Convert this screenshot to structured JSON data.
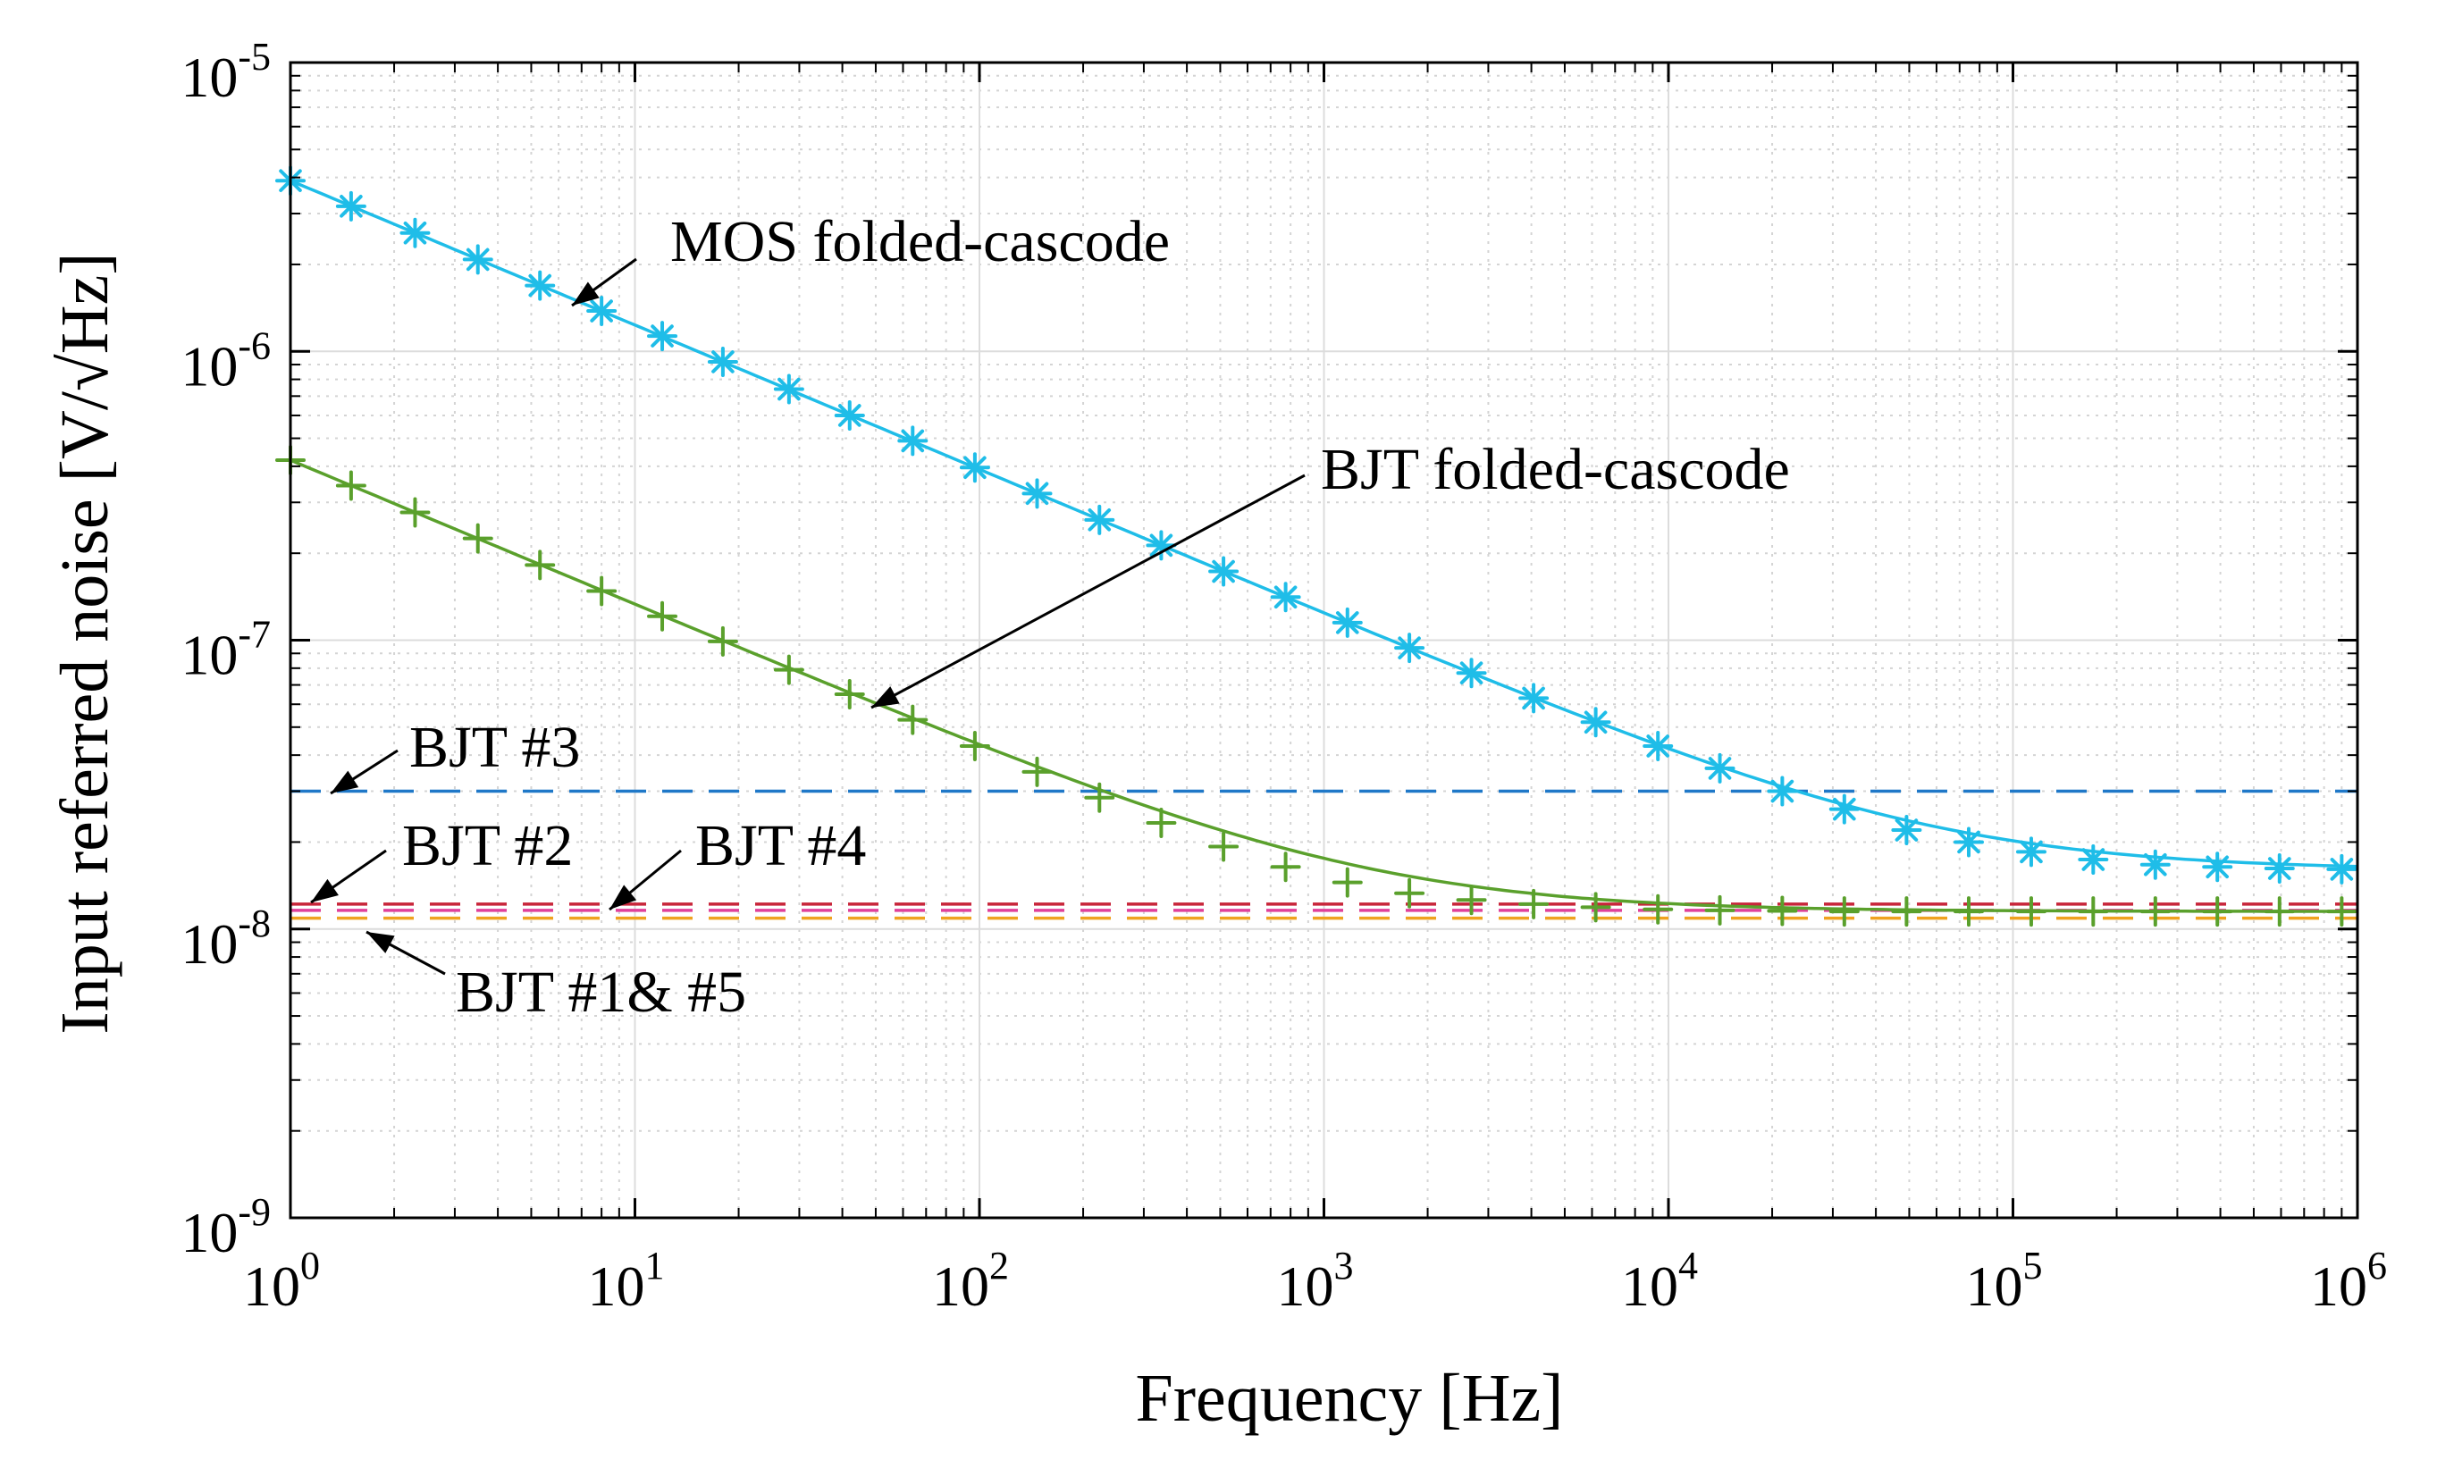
{
  "chart_data": {
    "type": "line",
    "xscale": "log",
    "yscale": "log",
    "xlim": [
      1,
      1000000
    ],
    "ylim": [
      1e-09,
      1e-05
    ],
    "grid": true,
    "minor_grid": true,
    "xlabel": "Frequency [Hz]",
    "ylabel": "Input referred noise [V/√Hz]",
    "x_ticks": [
      {
        "base": "10",
        "exp": "0",
        "value": 1
      },
      {
        "base": "10",
        "exp": "1",
        "value": 10
      },
      {
        "base": "10",
        "exp": "2",
        "value": 100
      },
      {
        "base": "10",
        "exp": "3",
        "value": 1000
      },
      {
        "base": "10",
        "exp": "4",
        "value": 10000
      },
      {
        "base": "10",
        "exp": "5",
        "value": 100000
      },
      {
        "base": "10",
        "exp": "6",
        "value": 1000000
      }
    ],
    "y_ticks": [
      {
        "base": "10",
        "exp": "-5",
        "value": 1e-05
      },
      {
        "base": "10",
        "exp": "-6",
        "value": 1e-06
      },
      {
        "base": "10",
        "exp": "-7",
        "value": 1e-07
      },
      {
        "base": "10",
        "exp": "-8",
        "value": 1e-08
      },
      {
        "base": "10",
        "exp": "-9",
        "value": 1e-09
      }
    ],
    "series": [
      {
        "name": "MOS folded-cascode",
        "color": "#1fbde8",
        "marker": "asterisk",
        "curve": {
          "white": 1.6e-08,
          "flicker_at_1hz": 3.9e-06,
          "flicker_exponent": 0.5
        },
        "x": [
          1,
          1.5,
          2.3,
          3.5,
          5.3,
          8,
          12,
          18,
          28,
          42,
          64,
          97,
          147,
          223,
          337,
          511,
          774,
          1170,
          1770,
          2680,
          4060,
          6150,
          9320,
          14100,
          21400,
          32400,
          49100,
          74400,
          113000,
          171000,
          259000,
          392000,
          594000,
          900000
        ],
        "values": [
          3.9e-06,
          3.18e-06,
          2.57e-06,
          2.08e-06,
          1.69e-06,
          1.38e-06,
          1.13e-06,
          9.2e-07,
          7.4e-07,
          6e-07,
          4.9e-07,
          3.96e-07,
          3.22e-07,
          2.61e-07,
          2.13e-07,
          1.73e-07,
          1.41e-07,
          1.15e-07,
          9.4e-08,
          7.7e-08,
          6.3e-08,
          5.2e-08,
          4.3e-08,
          3.6e-08,
          3e-08,
          2.6e-08,
          2.2e-08,
          2e-08,
          1.85e-08,
          1.74e-08,
          1.67e-08,
          1.64e-08,
          1.62e-08,
          1.61e-08
        ]
      },
      {
        "name": "BJT folded-cascode",
        "color": "#5aa02c",
        "marker": "plus",
        "curve": {
          "white": 1.15e-08,
          "flicker_at_1hz": 4.2e-07,
          "flicker_exponent": 0.5
        },
        "x": [
          1,
          1.5,
          2.3,
          3.5,
          5.3,
          8,
          12,
          18,
          28,
          42,
          64,
          97,
          147,
          223,
          337,
          511,
          774,
          1170,
          1770,
          2680,
          4060,
          6150,
          9320,
          14100,
          21400,
          32400,
          49100,
          74400,
          113000,
          171000,
          259000,
          392000,
          594000,
          900000
        ],
        "values": [
          4.2e-07,
          3.43e-07,
          2.77e-07,
          2.25e-07,
          1.82e-07,
          1.48e-07,
          1.21e-07,
          9.9e-08,
          7.9e-08,
          6.5e-08,
          5.3e-08,
          4.3e-08,
          3.5e-08,
          2.85e-08,
          2.33e-08,
          1.93e-08,
          1.64e-08,
          1.45e-08,
          1.33e-08,
          1.26e-08,
          1.22e-08,
          1.19e-08,
          1.17e-08,
          1.16e-08,
          1.155e-08,
          1.15e-08,
          1.15e-08,
          1.15e-08,
          1.15e-08,
          1.15e-08,
          1.15e-08,
          1.15e-08,
          1.15e-08,
          1.15e-08
        ]
      }
    ],
    "reference_lines": [
      {
        "name": "BJT #3",
        "value": 3e-08,
        "color": "#1f78c8",
        "style": "dashed"
      },
      {
        "name": "BJT #2",
        "value": 1.22e-08,
        "color": "#c8253a",
        "style": "dashed"
      },
      {
        "name": "BJT #4",
        "value": 1.16e-08,
        "color": "#e0409a",
        "style": "dashed"
      },
      {
        "name": "BJT #1& #5",
        "value": 1.09e-08,
        "color": "#f0a21f",
        "style": "dashed"
      }
    ],
    "annotations": [
      {
        "id": "mos",
        "text": "MOS folded-cascode"
      },
      {
        "id": "bjtfc",
        "text": "BJT folded-cascode"
      },
      {
        "id": "bjt3",
        "text": "BJT #3"
      },
      {
        "id": "bjt2",
        "text": "BJT #2"
      },
      {
        "id": "bjt4",
        "text": "BJT #4"
      },
      {
        "id": "bjt15",
        "text": "BJT #1& #5"
      }
    ]
  }
}
